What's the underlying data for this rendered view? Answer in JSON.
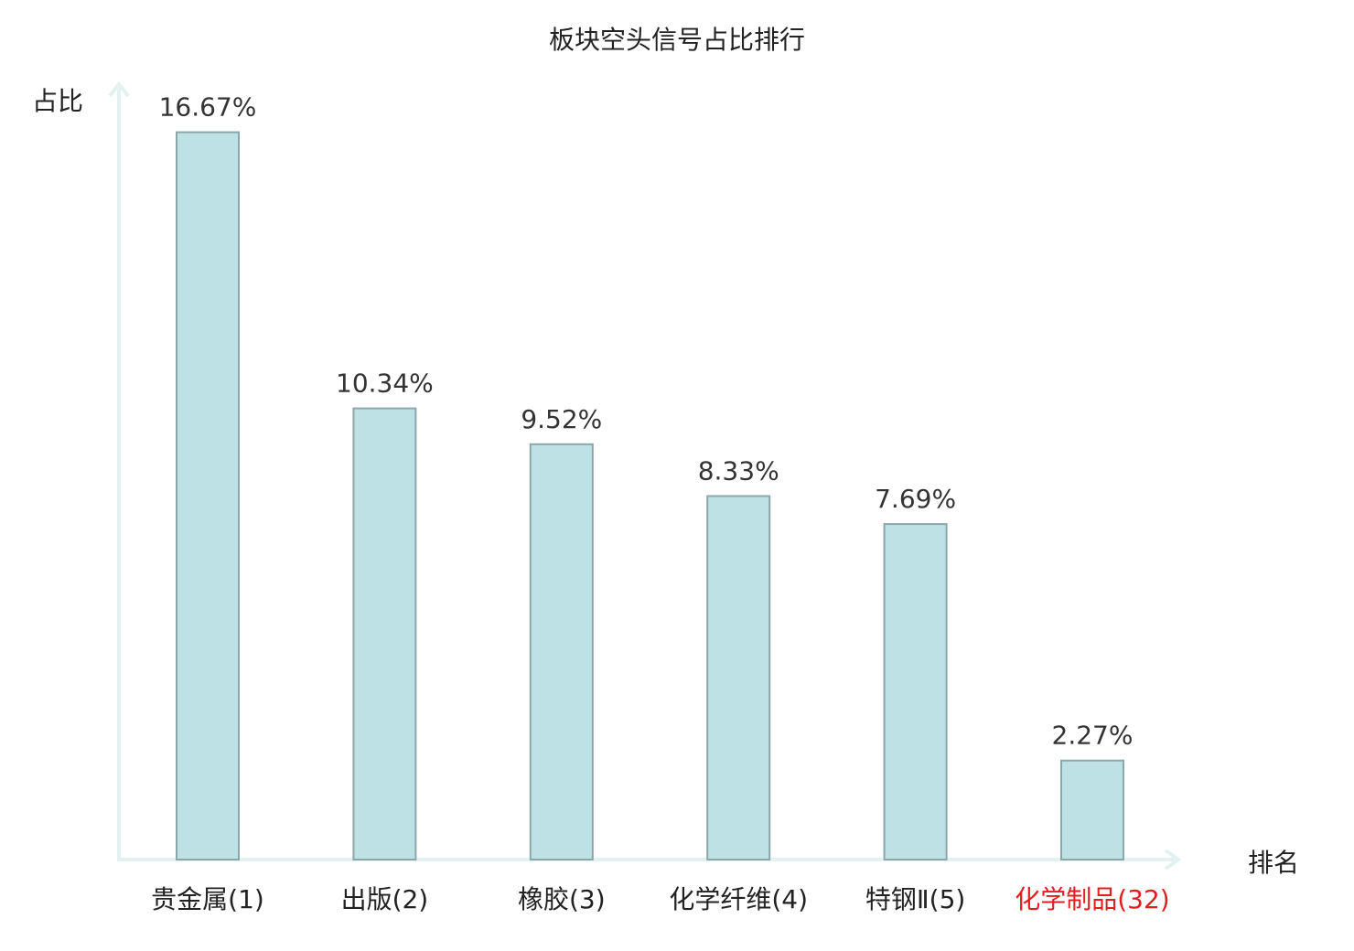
{
  "chart_data": {
    "type": "bar",
    "title": "板块空头信号占比排行",
    "ylabel": "占比",
    "xlabel": "排名",
    "categories": [
      "贵金属(1)",
      "出版(2)",
      "橡胶(3)",
      "化学纤维(4)",
      "特钢Ⅱ(5)",
      "化学制品(32)"
    ],
    "values": [
      16.67,
      10.34,
      9.52,
      8.33,
      7.69,
      2.27
    ],
    "value_labels": [
      "16.67%",
      "10.34%",
      "9.52%",
      "8.33%",
      "7.69%",
      "2.27%"
    ],
    "highlight_index": 5,
    "ylim": [
      0,
      17.5
    ],
    "grid": false,
    "legend": "none"
  },
  "colors": {
    "bar_fill": "#bde1e4",
    "bar_stroke": "#8aa7aa",
    "axis": "#e3f2f0",
    "text": "#222222",
    "highlight_text": "#e02020"
  }
}
